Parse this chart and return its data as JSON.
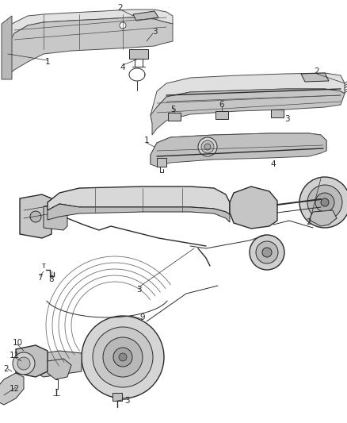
{
  "bg_color": "#ffffff",
  "line_color": "#4a4a4a",
  "dark_line": "#2a2a2a",
  "gray_fill": "#d0d0d0",
  "light_fill": "#e8e8e8",
  "mid_fill": "#c0c0c0",
  "fig_width": 4.38,
  "fig_height": 5.33,
  "dpi": 100,
  "label_fs": 7.5
}
